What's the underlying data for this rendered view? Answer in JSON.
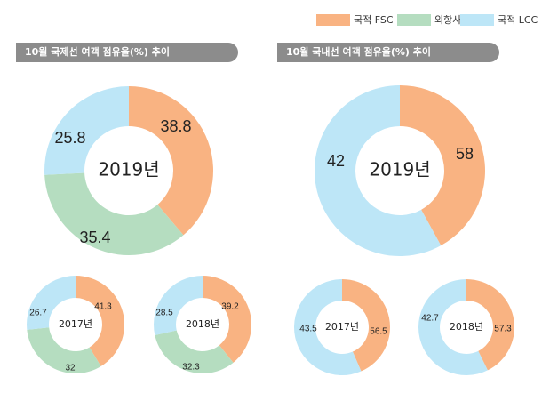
{
  "legend": [
    {
      "label": "국적 FSC",
      "color": "#f9b382"
    },
    {
      "label": "외항사",
      "color": "#b5ddc0"
    },
    {
      "label": "국적 LCC",
      "color": "#bde6f7"
    }
  ],
  "panels": [
    {
      "title": "10월 국제선 여객 점유율(%) 추이"
    },
    {
      "title": "10월 국내선 여객 점유율(%) 추이"
    }
  ],
  "chart_data": [
    {
      "type": "pie",
      "title": "10월 국제선 여객 점유율(%) 추이",
      "center_label": "2019년",
      "series": [
        {
          "name": "국적 FSC",
          "value": 38.8
        },
        {
          "name": "외항사",
          "value": 35.4
        },
        {
          "name": "국적 LCC",
          "value": 25.8
        }
      ]
    },
    {
      "type": "pie",
      "title": "10월 국내선 여객 점유율(%) 추이",
      "center_label": "2019년",
      "series": [
        {
          "name": "국적 FSC",
          "value": 42
        },
        {
          "name": "국적 LCC",
          "value": 58
        }
      ]
    },
    {
      "type": "pie",
      "center_label": "2017년",
      "series": [
        {
          "name": "국적 FSC",
          "value": 41.3
        },
        {
          "name": "외항사",
          "value": 32
        },
        {
          "name": "국적 LCC",
          "value": 26.7
        }
      ]
    },
    {
      "type": "pie",
      "center_label": "2018년",
      "series": [
        {
          "name": "국적 FSC",
          "value": 39.2
        },
        {
          "name": "외항사",
          "value": 32.3
        },
        {
          "name": "국적 LCC",
          "value": 28.5
        }
      ]
    },
    {
      "type": "pie",
      "center_label": "2017년",
      "series": [
        {
          "name": "국적 FSC",
          "value": 43.5
        },
        {
          "name": "국적 LCC",
          "value": 56.5
        }
      ]
    },
    {
      "type": "pie",
      "center_label": "2018년",
      "series": [
        {
          "name": "국적 FSC",
          "value": 42.7
        },
        {
          "name": "국적 LCC",
          "value": 57.3
        }
      ]
    }
  ]
}
